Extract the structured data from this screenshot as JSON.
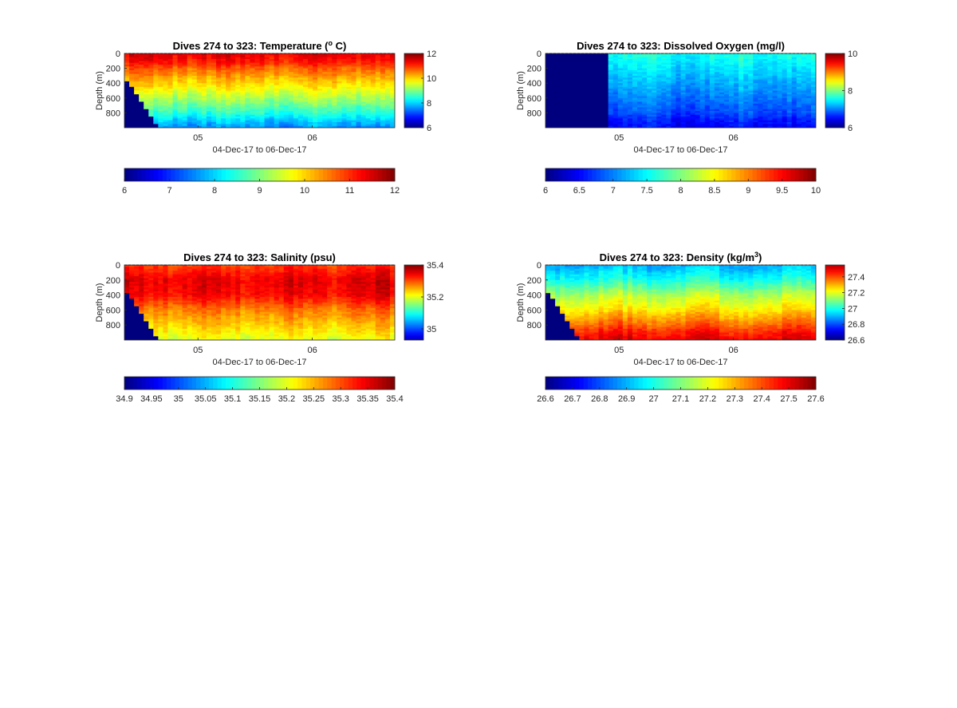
{
  "chart_data": [
    {
      "type": "heatmap",
      "title": "Dives 274 to 323: Temperature (",
      "title_sup": "o",
      "title_end": " C)",
      "xlabel": "04-Dec-17 to 06-Dec-17",
      "ylabel": "Depth (m)",
      "x_ticks": [
        "05",
        "06"
      ],
      "y_ticks": [
        0,
        200,
        400,
        600,
        800
      ],
      "ylim": [
        0,
        1000
      ],
      "colorbar_ticks": [
        6,
        8,
        10,
        12
      ],
      "horizontal_colorbar_ticks": [
        6,
        7,
        8,
        9,
        10,
        11,
        12
      ],
      "clim": [
        6,
        12
      ],
      "profile_depth_c": [
        0,
        100,
        200,
        400,
        600,
        800,
        900,
        1000
      ],
      "profile_values": [
        11.4,
        11.2,
        10.7,
        10.0,
        9.3,
        8.5,
        8.0,
        7.6
      ],
      "missing_block": "seafloor-staircase"
    },
    {
      "type": "heatmap",
      "title": "Dives 274 to 323: Dissolved Oxygen (mg/l)",
      "xlabel": "04-Dec-17 to 06-Dec-17",
      "ylabel": "Depth (m)",
      "x_ticks": [
        "05",
        "06"
      ],
      "y_ticks": [
        0,
        200,
        400,
        600,
        800
      ],
      "ylim": [
        0,
        1000
      ],
      "colorbar_ticks": [
        6,
        8,
        10
      ],
      "horizontal_colorbar_ticks": [
        "6",
        "6.5",
        "7",
        "7.5",
        "8",
        "8.5",
        "9",
        "9.5",
        "10"
      ],
      "clim": [
        6,
        10
      ],
      "profile_depth_c": [
        0,
        100,
        200,
        400,
        600,
        800,
        900,
        1000
      ],
      "profile_values": [
        7.6,
        7.5,
        7.4,
        7.2,
        7.0,
        6.8,
        6.6,
        6.5
      ],
      "missing_block": "no-data-start"
    },
    {
      "type": "heatmap",
      "title": "Dives 274 to 323: Salinity (psu)",
      "xlabel": "04-Dec-17 to 06-Dec-17",
      "ylabel": "Depth (m)",
      "x_ticks": [
        "05",
        "06"
      ],
      "y_ticks": [
        0,
        200,
        400,
        600,
        800
      ],
      "ylim": [
        0,
        1000
      ],
      "colorbar_ticks": [
        "35",
        "35.2",
        "35.4"
      ],
      "horizontal_colorbar_ticks": [
        "34.9",
        "34.95",
        "35",
        "35.05",
        "35.1",
        "35.15",
        "35.2",
        "35.25",
        "35.3",
        "35.35",
        "35.4"
      ],
      "clim": [
        34.9,
        35.4
      ],
      "colorbar_clim": [
        34.93,
        35.4
      ],
      "profile_depth_c": [
        0,
        100,
        200,
        400,
        600,
        800,
        900,
        1000
      ],
      "profile_values": [
        35.31,
        35.33,
        35.35,
        35.34,
        35.28,
        35.24,
        35.22,
        35.2
      ],
      "missing_block": "seafloor-staircase"
    },
    {
      "type": "heatmap",
      "title": "Dives 274 to 323: Density (kg/m",
      "title_sup": "3",
      "title_end": ")",
      "xlabel": "04-Dec-17 to 06-Dec-17",
      "ylabel": "Depth (m)",
      "x_ticks": [
        "05",
        "06"
      ],
      "y_ticks": [
        0,
        200,
        400,
        600,
        800
      ],
      "ylim": [
        0,
        1000
      ],
      "colorbar_ticks": [
        "26.6",
        "26.8",
        "27",
        "27.2",
        "27.4"
      ],
      "horizontal_colorbar_ticks": [
        "26.6",
        "26.7",
        "26.8",
        "26.9",
        "27",
        "27.1",
        "27.2",
        "27.3",
        "27.4",
        "27.5",
        "27.6"
      ],
      "clim": [
        26.6,
        27.6
      ],
      "colorbar_clim": [
        26.6,
        27.55
      ],
      "profile_depth_c": [
        0,
        100,
        200,
        400,
        600,
        800,
        900,
        1000
      ],
      "profile_values": [
        26.9,
        26.95,
        27.0,
        27.15,
        27.25,
        27.38,
        27.45,
        27.5
      ],
      "missing_block": "seafloor-staircase"
    }
  ],
  "colors": {
    "colormap": "jet",
    "missing": "#00007f"
  }
}
